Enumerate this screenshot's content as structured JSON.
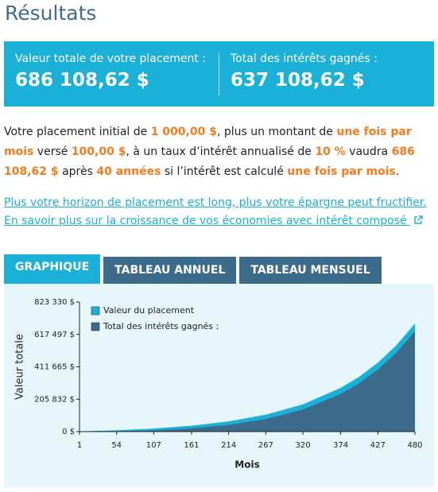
{
  "title": "Résultats",
  "summary": [
    {
      "label": "Valeur totale de votre placement :",
      "value": "686 108,62 $"
    },
    {
      "label": "Total des intérêts gagnés :",
      "value": "637 108,62 $"
    }
  ],
  "paragraph": {
    "segments": [
      {
        "text": "Votre placement initial de ",
        "emphasis": false
      },
      {
        "text": "1 000,00 $",
        "emphasis": true
      },
      {
        "text": ", plus un montant de ",
        "emphasis": false
      },
      {
        "text": "une fois par mois",
        "emphasis": true
      },
      {
        "text": " versé ",
        "emphasis": false
      },
      {
        "text": "100,00 $",
        "emphasis": true
      },
      {
        "text": ", à un taux d’intérêt annualisé de ",
        "emphasis": false
      },
      {
        "text": "10 %",
        "emphasis": true
      },
      {
        "text": " vaudra ",
        "emphasis": false
      },
      {
        "text": "686 108,62 $",
        "emphasis": true
      },
      {
        "text": " après ",
        "emphasis": false
      },
      {
        "text": "40 années",
        "emphasis": true
      },
      {
        "text": " si l’intérêt est calculé ",
        "emphasis": false
      },
      {
        "text": "une fois par mois",
        "emphasis": true
      },
      {
        "text": ".",
        "emphasis": false
      }
    ]
  },
  "links": [
    "Plus votre horizon de placement est long, plus votre épargne peut fructifier.",
    "En savoir plus sur la croissance de vos économies avec intérêt composé"
  ],
  "tabs": {
    "labels": [
      "GRAPHIQUE",
      "TABLEAU ANNUEL",
      "TABLEAU MENSUEL"
    ],
    "active": 0
  },
  "chart_data": {
    "type": "area",
    "y_label": "Valeur totale",
    "x_label": "Mois",
    "x": [
      1,
      54,
      107,
      161,
      214,
      267,
      320,
      374,
      400,
      427,
      453,
      480
    ],
    "series": [
      {
        "name": "Valeur du placement",
        "color": "#1ab0d8",
        "values": [
          1108.33,
          8350,
          19592,
          37457,
          64774,
          107189,
          173029,
          277679,
          347320,
          437670,
          545960,
          686108.62
        ]
      },
      {
        "name": "Total des intérêts gagnés :",
        "color": "#3d6b8c",
        "values": [
          8.33,
          1950,
          7892,
          20357,
          42374,
          79489,
          140029,
          239279,
          306220,
          393970,
          499560,
          637108.62
        ]
      }
    ],
    "xlim": [
      1,
      480
    ],
    "xticks": [
      1,
      54,
      107,
      161,
      214,
      267,
      320,
      374,
      427,
      480
    ],
    "ylim": [
      0,
      823330
    ],
    "yticks": [
      {
        "value": 0,
        "label": "0 $"
      },
      {
        "value": 205832,
        "label": "205 832 $"
      },
      {
        "value": 411665,
        "label": "411 665 $"
      },
      {
        "value": 617497,
        "label": "617 497 $"
      },
      {
        "value": 823330,
        "label": "823 330 $"
      }
    ]
  }
}
